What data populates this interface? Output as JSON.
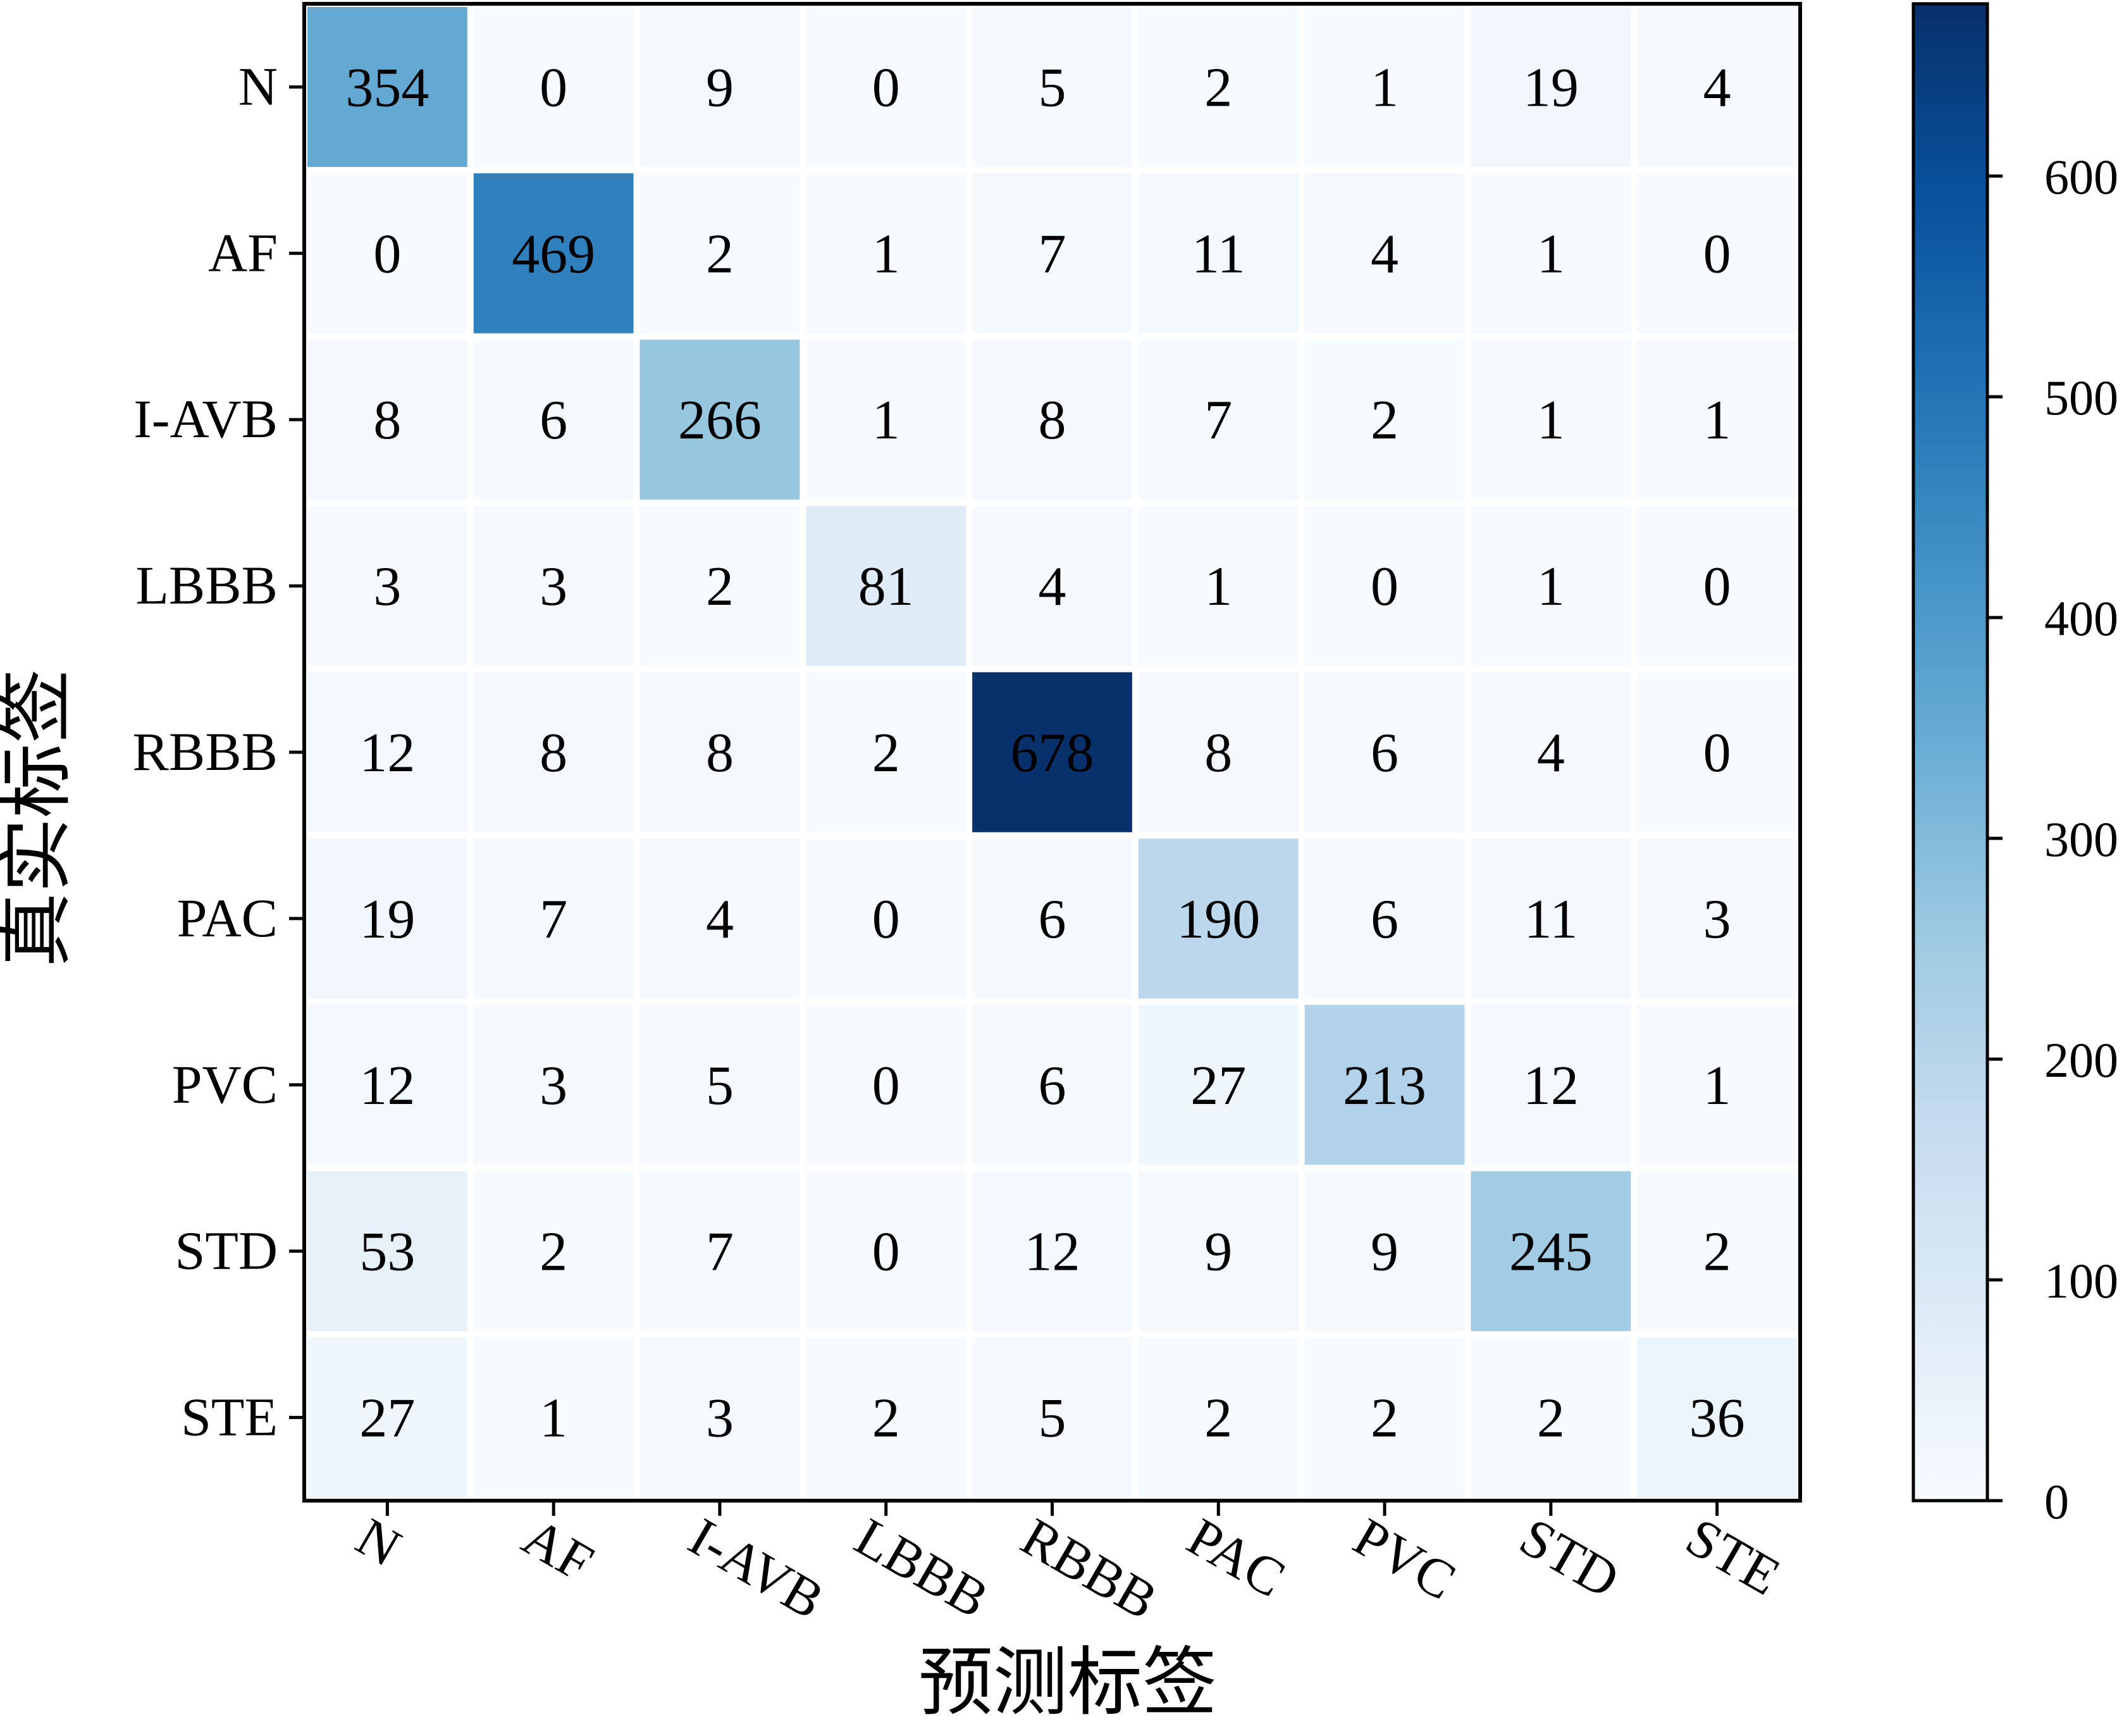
{
  "chart_data": {
    "type": "heatmap",
    "xlabel": "预测标签",
    "ylabel": "真实标签",
    "x_categories": [
      "N",
      "AF",
      "I-AVB",
      "LBBB",
      "RBBB",
      "PAC",
      "PVC",
      "STD",
      "STE"
    ],
    "y_categories": [
      "N",
      "AF",
      "I-AVB",
      "LBBB",
      "RBBB",
      "PAC",
      "PVC",
      "STD",
      "STE"
    ],
    "values": [
      [
        354,
        0,
        9,
        0,
        5,
        2,
        1,
        19,
        4
      ],
      [
        0,
        469,
        2,
        1,
        7,
        11,
        4,
        1,
        0
      ],
      [
        8,
        6,
        266,
        1,
        8,
        7,
        2,
        1,
        1
      ],
      [
        3,
        3,
        2,
        81,
        4,
        1,
        0,
        1,
        0
      ],
      [
        12,
        8,
        8,
        2,
        678,
        8,
        6,
        4,
        0
      ],
      [
        19,
        7,
        4,
        0,
        6,
        190,
        6,
        11,
        3
      ],
      [
        12,
        3,
        5,
        0,
        6,
        27,
        213,
        12,
        1
      ],
      [
        53,
        2,
        7,
        0,
        12,
        9,
        9,
        245,
        2
      ],
      [
        27,
        1,
        3,
        2,
        5,
        2,
        2,
        2,
        36
      ]
    ],
    "colorbar": {
      "colormap": "Blues",
      "range": [
        0,
        678
      ],
      "ticks": [
        0,
        100,
        200,
        300,
        400,
        500,
        600
      ],
      "tick_labels": [
        "0",
        "100",
        "200",
        "300",
        "400",
        "500",
        "600"
      ]
    },
    "grid": false,
    "legend": "colorbar-right"
  }
}
